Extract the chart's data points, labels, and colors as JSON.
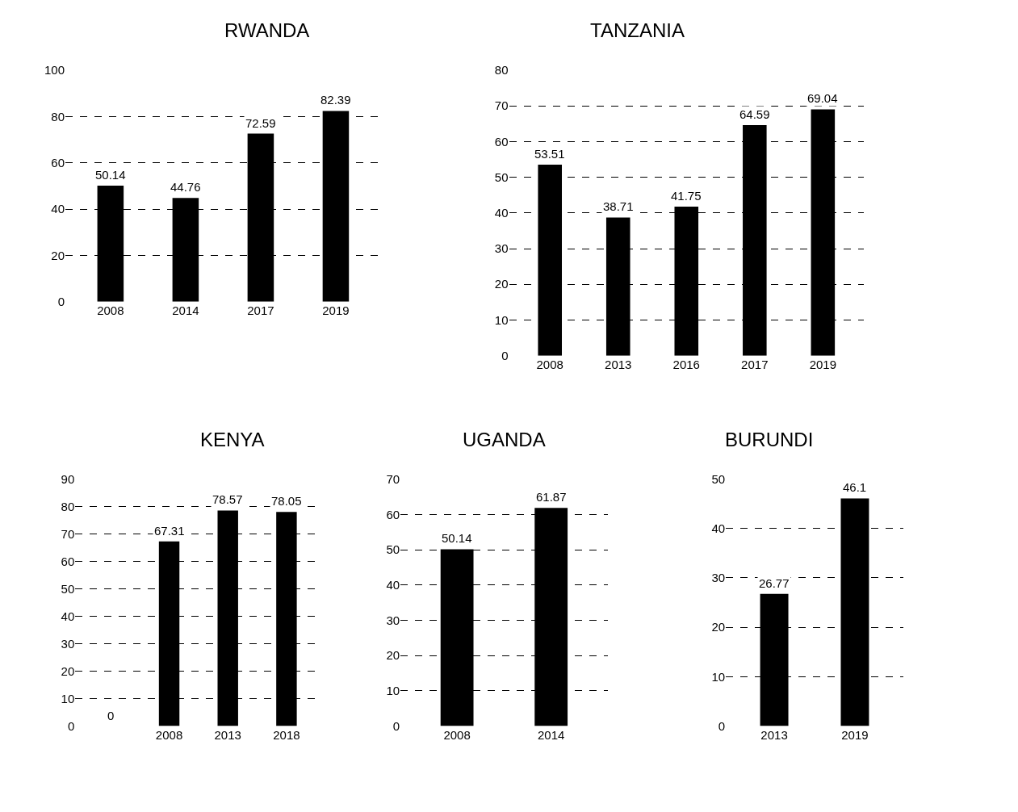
{
  "chart_data": [
    {
      "type": "bar",
      "title": "RWANDA",
      "categories": [
        "2008",
        "2014",
        "2017",
        "2019"
      ],
      "values": [
        50.14,
        44.76,
        72.59,
        82.39
      ],
      "color": "#000000",
      "ylim": [
        0,
        100
      ],
      "yticks": [
        0,
        20,
        40,
        60,
        80,
        100
      ],
      "data_labels": true,
      "grid": "y"
    },
    {
      "type": "bar",
      "title": "TANZANIA",
      "categories": [
        "2008",
        "2013",
        "2016",
        "2017",
        "2019"
      ],
      "values": [
        53.51,
        38.71,
        41.75,
        64.59,
        69.04
      ],
      "color": "#000000",
      "ylim": [
        0,
        80
      ],
      "yticks": [
        0,
        10,
        20,
        30,
        40,
        50,
        60,
        70,
        80
      ],
      "data_labels": true,
      "grid": "y"
    },
    {
      "type": "bar",
      "title": "KENYA",
      "categories": [
        null,
        "2008",
        "2013",
        "2018"
      ],
      "values": [
        0,
        67.31,
        78.57,
        78.05
      ],
      "color": "#000000",
      "ylim": [
        0,
        90
      ],
      "yticks": [
        0,
        10,
        20,
        30,
        40,
        50,
        60,
        70,
        80,
        90
      ],
      "data_labels": true,
      "grid": "y"
    },
    {
      "type": "bar",
      "title": "UGANDA",
      "categories": [
        "2008",
        "2014"
      ],
      "values": [
        50.14,
        61.87
      ],
      "color": "#000000",
      "ylim": [
        0,
        70
      ],
      "yticks": [
        0,
        10,
        20,
        30,
        40,
        50,
        60,
        70
      ],
      "data_labels": true,
      "grid": "y"
    },
    {
      "type": "bar",
      "title": "BURUNDI",
      "categories": [
        "2013",
        "2019"
      ],
      "values": [
        26.77,
        46.1
      ],
      "color": "#000000",
      "ylim": [
        0,
        50
      ],
      "yticks": [
        0,
        10,
        20,
        30,
        40,
        50
      ],
      "data_labels": true,
      "grid": "y"
    }
  ]
}
